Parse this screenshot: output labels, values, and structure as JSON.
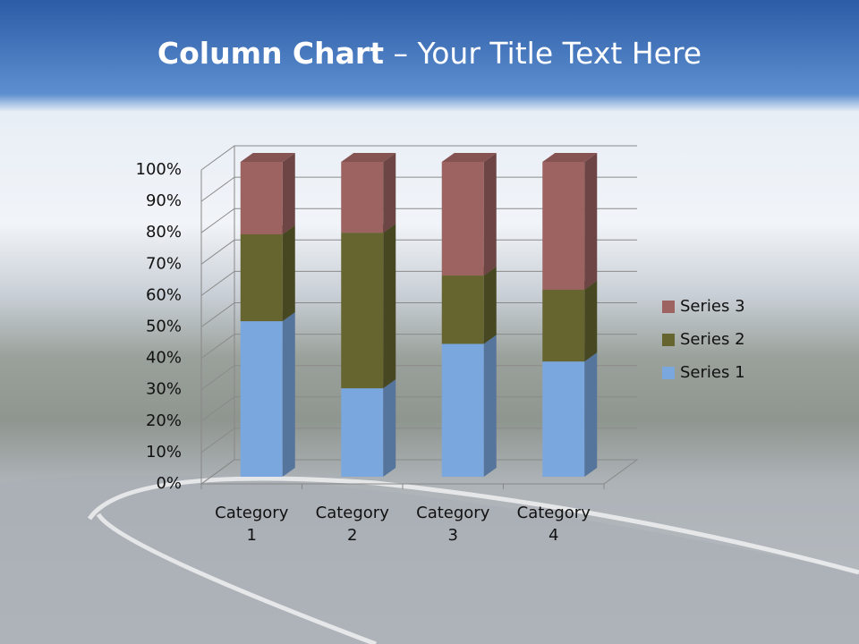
{
  "chart_data": {
    "type": "stacked_column_3d",
    "title": [
      "Column Chart",
      "– Your Title Text Here"
    ],
    "categories": [
      "Category 1",
      "Category 2",
      "Category 3",
      "Category 4"
    ],
    "series": [
      {
        "name": "Series 1",
        "color": "#7ba7df",
        "values": [
          49.4,
          28.1,
          42.2,
          36.6
        ]
      },
      {
        "name": "Series 2",
        "color": "#66652f",
        "values": [
          27.6,
          49.4,
          21.7,
          22.8
        ]
      },
      {
        "name": "Series 3",
        "color": "#9c6361",
        "values": [
          23.0,
          22.5,
          36.1,
          40.6
        ]
      }
    ],
    "ylim": [
      0,
      100
    ],
    "yticks": [
      {
        "value": 0,
        "label": "0%"
      },
      {
        "value": 10,
        "label": "10%"
      },
      {
        "value": 20,
        "label": "20%"
      },
      {
        "value": 30,
        "label": "30%"
      },
      {
        "value": 40,
        "label": "40%"
      },
      {
        "value": 50,
        "label": "50%"
      },
      {
        "value": 60,
        "label": "60%"
      },
      {
        "value": 70,
        "label": "70%"
      },
      {
        "value": 80,
        "label": "80%"
      },
      {
        "value": 90,
        "label": "90%"
      },
      {
        "value": 100,
        "label": "100%"
      }
    ],
    "grid": true,
    "legend": "right"
  }
}
